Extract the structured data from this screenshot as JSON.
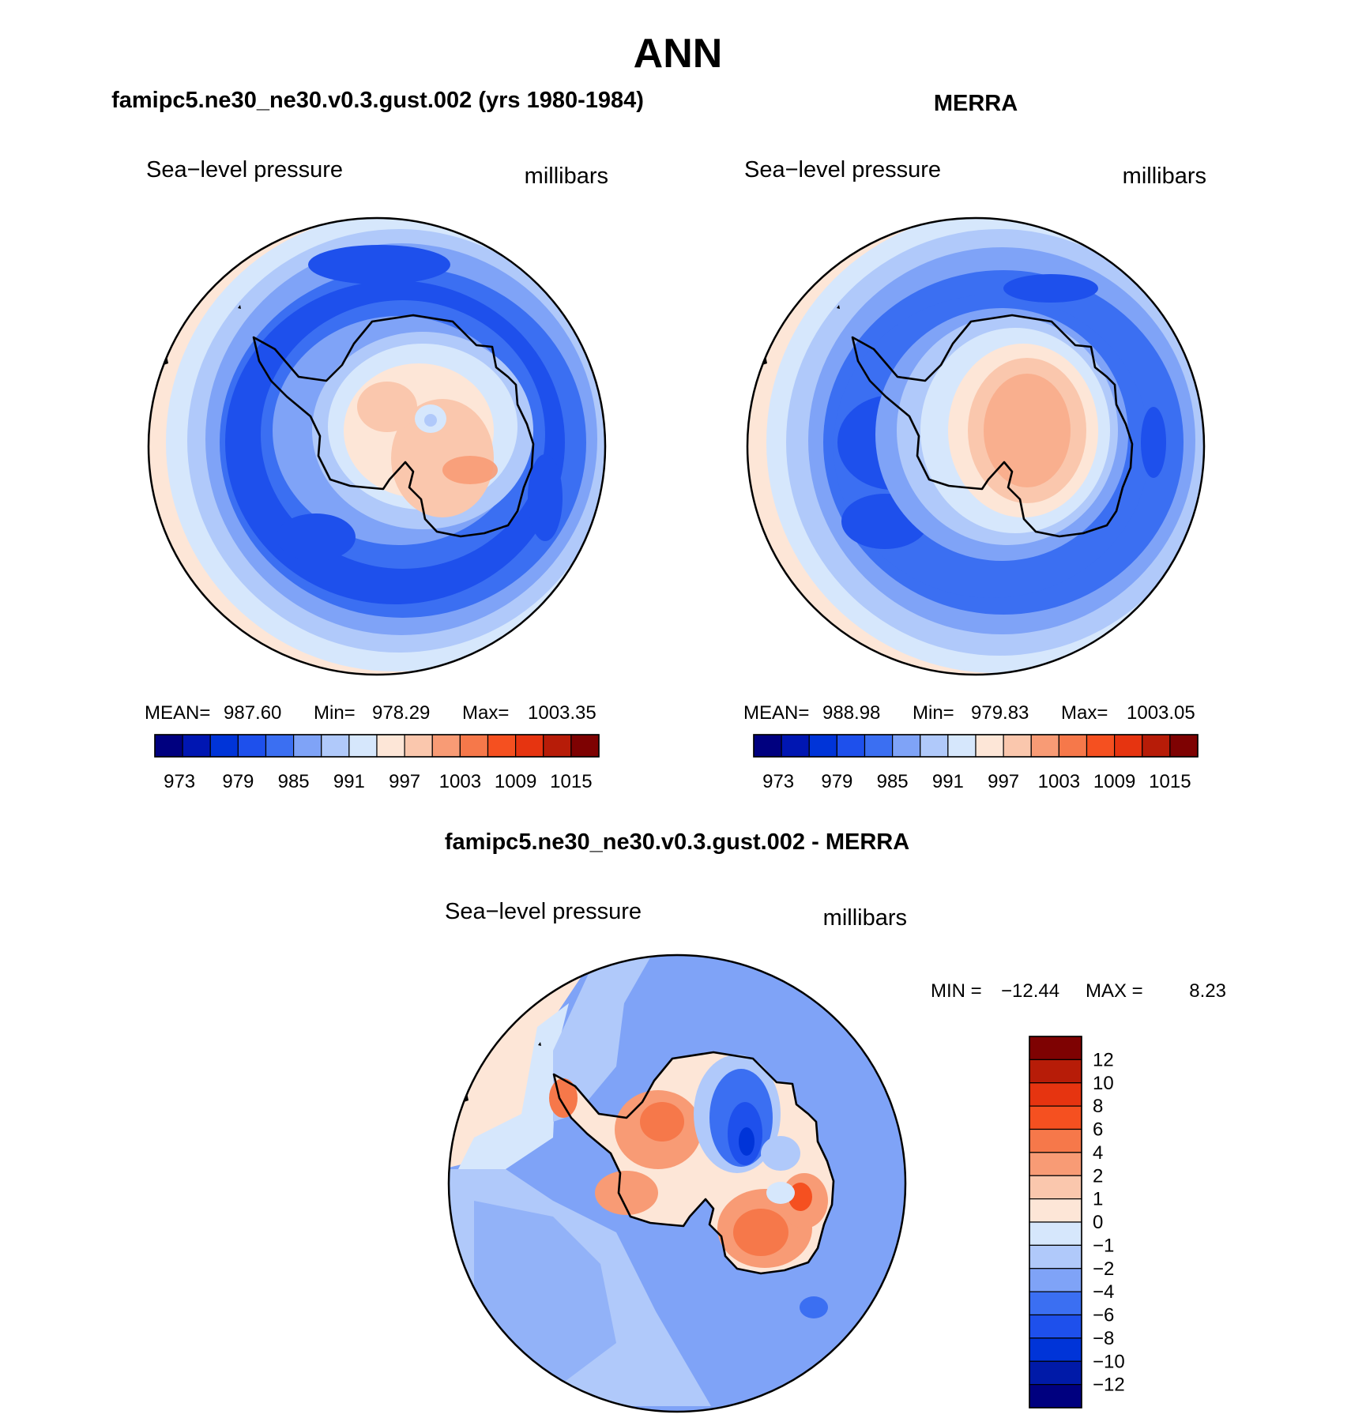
{
  "main_title": "ANN",
  "panels": [
    {
      "title": "famipc5.ne30_ne30.v0.3.gust.002 (yrs 1980-1984)",
      "variable": "Sea−level pressure",
      "units": "millibars",
      "stats": {
        "mean_label": "MEAN=",
        "mean": "987.60",
        "min_label": "Min=",
        "min": "978.29",
        "max_label": "Max=",
        "max": "1003.35"
      }
    },
    {
      "title": "MERRA",
      "variable": "Sea−level pressure",
      "units": "millibars",
      "stats": {
        "mean_label": "MEAN=",
        "mean": "988.98",
        "min_label": "Min=",
        "min": "979.83",
        "max_label": "Max=",
        "max": "1003.05"
      }
    },
    {
      "title": "famipc5.ne30_ne30.v0.3.gust.002 - MERRA",
      "variable": "Sea−level pressure",
      "units": "millibars",
      "stats": {
        "min_label": "MIN =",
        "min": "−12.44",
        "max_label": "MAX =",
        "max": "8.23"
      }
    }
  ],
  "abs_colorbar": {
    "colors": [
      "#00007f",
      "#0016b2",
      "#0034d8",
      "#1e50ec",
      "#3b6ff2",
      "#7fa3f7",
      "#b0c9fa",
      "#d6e7fc",
      "#fde6d7",
      "#fac7ad",
      "#f89b75",
      "#f6784a",
      "#f55020",
      "#e63410",
      "#b71c08",
      "#7e0202"
    ],
    "labels": [
      "973",
      "979",
      "985",
      "991",
      "997",
      "1003",
      "1009",
      "1015"
    ]
  },
  "diff_colorbar": {
    "colors": [
      "#00007f",
      "#001aa8",
      "#0034d8",
      "#1e50ec",
      "#3b6ff2",
      "#7fa3f7",
      "#b0c9fa",
      "#d6e7fc",
      "#fde6d7",
      "#fac7ad",
      "#f89b75",
      "#f6784a",
      "#f55020",
      "#e63410",
      "#b71c08",
      "#7e0202"
    ],
    "labels": [
      "12",
      "10",
      "8",
      "6",
      "4",
      "2",
      "1",
      "0",
      "−1",
      "−2",
      "−4",
      "−6",
      "−8",
      "−10",
      "−12"
    ]
  }
}
